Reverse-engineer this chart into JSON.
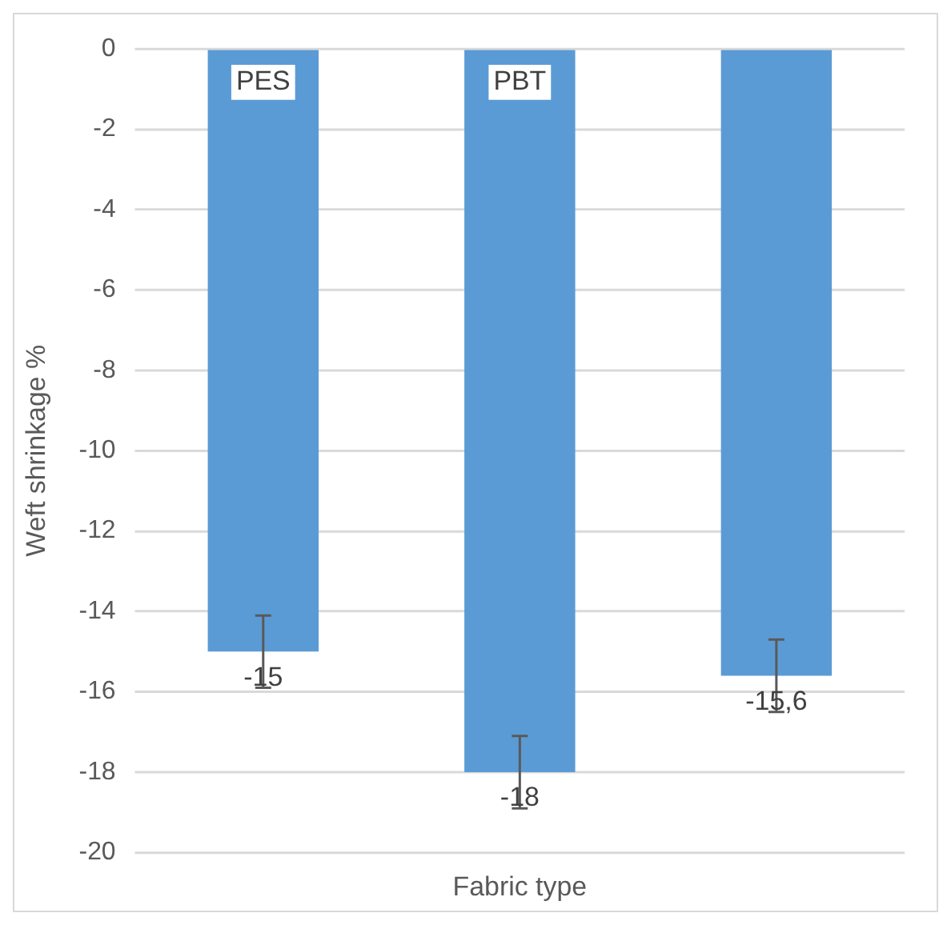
{
  "chart_data": {
    "type": "bar",
    "xlabel": "Fabric type",
    "ylabel": "Weft shrinkage %",
    "categories": [
      "PES",
      "PBT",
      null
    ],
    "values": [
      -15,
      -18,
      -15.6
    ],
    "errors": [
      0.9,
      0.9,
      0.9
    ],
    "value_labels": [
      "-15",
      "-18",
      "-15,6"
    ],
    "color": "#5b9bd5",
    "ylim": [
      -20,
      0
    ],
    "yticks": [
      0,
      -2,
      -4,
      -6,
      -8,
      -10,
      -12,
      -14,
      -16,
      -18,
      -20
    ],
    "grid": "y"
  }
}
